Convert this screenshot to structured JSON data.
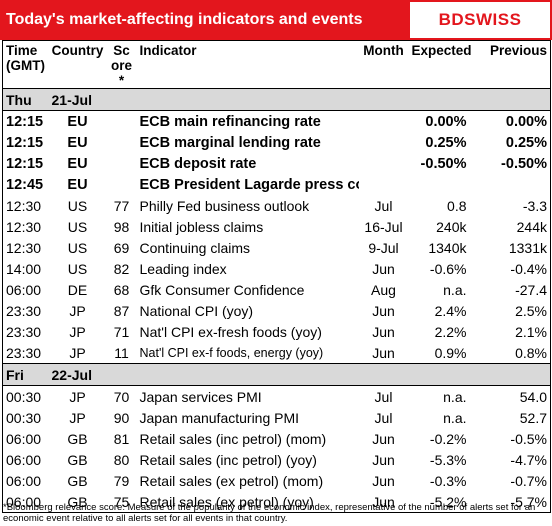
{
  "header": {
    "title": "Today's market-affecting indicators and events",
    "logo": "BDSWISS"
  },
  "table": {
    "columns": [
      "Time (GMT)",
      "Country",
      "Score*",
      "Indicator",
      "Month",
      "Expected",
      "Previous"
    ],
    "sections": [
      {
        "day": "Thu",
        "date": "21-Jul",
        "rows": [
          {
            "cells": [
              "12:15",
              "EU",
              null,
              "ECB main refinancing rate",
              null,
              "0.00%",
              "0.00%"
            ],
            "style": "bold"
          },
          {
            "cells": [
              "12:15",
              "EU",
              null,
              "ECB marginal lending rate",
              null,
              "0.25%",
              "0.25%"
            ],
            "style": "bold"
          },
          {
            "cells": [
              "12:15",
              "EU",
              null,
              "ECB deposit rate",
              null,
              "-0.50%",
              "-0.50%"
            ],
            "style": "bold"
          },
          {
            "cells": [
              "12:45",
              "EU",
              null,
              "ECB President Lagarde press conference",
              null,
              null,
              null
            ],
            "style": "bold"
          },
          {
            "cells": [
              "12:30",
              "US",
              "77",
              "Philly Fed business outlook",
              "Jul",
              "0.8",
              "-3.3"
            ]
          },
          {
            "cells": [
              "12:30",
              "US",
              "98",
              "Initial jobless claims",
              "16-Jul",
              "240k",
              "244k"
            ]
          },
          {
            "cells": [
              "12:30",
              "US",
              "69",
              "Continuing claims",
              "9-Jul",
              "1340k",
              "1331k"
            ]
          },
          {
            "cells": [
              "14:00",
              "US",
              "82",
              "Leading index",
              "Jun",
              "-0.6%",
              "-0.4%"
            ]
          },
          {
            "cells": [
              "06:00",
              "DE",
              "68",
              "Gfk Consumer Confidence",
              "Aug",
              "n.a.",
              "-27.4"
            ]
          },
          {
            "cells": [
              "23:30",
              "JP",
              "87",
              "National CPI (yoy)",
              "Jun",
              "2.4%",
              "2.5%"
            ]
          },
          {
            "cells": [
              "23:30",
              "JP",
              "71",
              "Nat'l CPI ex-fresh foods (yoy)",
              "Jun",
              "2.2%",
              "2.1%"
            ]
          },
          {
            "cells": [
              "23:30",
              "JP",
              "11",
              "Nat'l CPI ex-f foods, energy (yoy)",
              "Jun",
              "0.9%",
              "0.8%"
            ],
            "style": "small"
          }
        ]
      },
      {
        "day": "Fri",
        "date": "22-Jul",
        "rows": [
          {
            "cells": [
              "00:30",
              "JP",
              "70",
              "Japan services PMI",
              "Jul",
              "n.a.",
              "54.0"
            ]
          },
          {
            "cells": [
              "00:30",
              "JP",
              "90",
              "Japan manufacturing PMI",
              "Jul",
              "n.a.",
              "52.7"
            ]
          },
          {
            "cells": [
              "06:00",
              "GB",
              "81",
              "Retail sales (inc petrol) (mom)",
              "Jun",
              "-0.2%",
              "-0.5%"
            ]
          },
          {
            "cells": [
              "06:00",
              "GB",
              "80",
              "Retail sales (inc petrol) (yoy)",
              "Jun",
              "-5.3%",
              "-4.7%"
            ]
          },
          {
            "cells": [
              "06:00",
              "GB",
              "79",
              "Retail sales (ex petrol) (mom)",
              "Jun",
              "-0.3%",
              "-0.7%"
            ]
          },
          {
            "cells": [
              "06:00",
              "GB",
              "75",
              "Retail sales (ex petrol) (yoy)",
              "Jun",
              "-5.2%",
              "-5.7%"
            ]
          }
        ]
      }
    ]
  },
  "footnote": "*Bloomberg relevance score: Measure of the popularity of the economic index, representative of the number of alerts set for an economic event relative to all alerts set for all events in that country."
}
